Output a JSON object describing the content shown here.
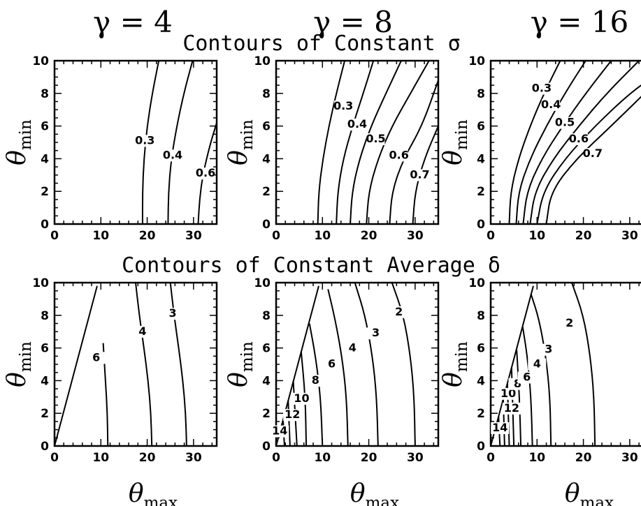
{
  "figure": {
    "gamma_labels": [
      "γ = 4",
      "γ = 8",
      "γ = 16"
    ],
    "row_titles": [
      "Contours of Constant σ",
      "Contours of Constant Average δ"
    ]
  },
  "chart_data": [
    {
      "type": "line",
      "title": "Contours of Constant σ",
      "panel": "γ = 4",
      "xlabel": "",
      "ylabel": "θmin",
      "xlim": [
        0,
        35
      ],
      "ylim": [
        0,
        10
      ],
      "xticks": [
        0,
        10,
        20,
        30
      ],
      "yticks": [
        0,
        2,
        4,
        6,
        8,
        10
      ],
      "series": [
        {
          "name": "0.3",
          "label_at": [
            19.5,
            4.9
          ],
          "x": [
            19.0,
            19.0,
            19.3,
            20.0,
            21.1,
            22.5
          ],
          "y": [
            0,
            2,
            4,
            6,
            8,
            10
          ]
        },
        {
          "name": "0.4",
          "label_at": [
            25.5,
            4.0
          ],
          "x": [
            24.5,
            24.6,
            25.2,
            26.4,
            27.9,
            29.8
          ],
          "y": [
            0,
            2,
            4,
            6,
            8,
            10
          ]
        },
        {
          "name": "0.6",
          "label_at": [
            32.6,
            2.9
          ],
          "x": [
            31.0,
            31.3,
            32.0,
            33.5,
            35.0
          ],
          "y": [
            0,
            1.5,
            3,
            4.8,
            6.2
          ]
        }
      ]
    },
    {
      "type": "line",
      "title": "Contours of Constant σ",
      "panel": "γ = 8",
      "xlabel": "",
      "ylabel": "θmin",
      "xlim": [
        0,
        35
      ],
      "ylim": [
        0,
        10
      ],
      "xticks": [
        0,
        10,
        20,
        30
      ],
      "yticks": [
        0,
        2,
        4,
        6,
        8,
        10
      ],
      "series": [
        {
          "name": "",
          "x": [
            9.0,
            9.2,
            10.1,
            11.4,
            13.0,
            14.8
          ],
          "y": [
            0,
            2,
            4,
            6,
            8,
            10
          ]
        },
        {
          "name": "0.3",
          "label_at": [
            14.5,
            7.0
          ],
          "x": [
            13.0,
            13.3,
            14.5,
            16.5,
            18.8,
            21.0
          ],
          "y": [
            0,
            2,
            4,
            6,
            8,
            10
          ]
        },
        {
          "name": "0.4",
          "label_at": [
            17.5,
            5.9
          ],
          "x": [
            16.0,
            16.4,
            18.0,
            20.5,
            23.7,
            27.0
          ],
          "y": [
            0,
            2,
            4,
            6,
            8,
            10
          ]
        },
        {
          "name": "0.5",
          "label_at": [
            21.5,
            5.0
          ],
          "x": [
            19.5,
            20.0,
            22.0,
            25.0,
            29.0,
            33.0
          ],
          "y": [
            0,
            2,
            4,
            6,
            8,
            10
          ]
        },
        {
          "name": "0.6",
          "label_at": [
            26.5,
            4.0
          ],
          "x": [
            24.5,
            25.0,
            27.5,
            31.5,
            35.0
          ],
          "y": [
            0,
            2,
            4,
            6,
            8.8
          ]
        },
        {
          "name": "0.7",
          "label_at": [
            31.0,
            2.8
          ],
          "x": [
            29.5,
            30.0,
            32.0,
            35.0
          ],
          "y": [
            0,
            2,
            4,
            6
          ]
        }
      ]
    },
    {
      "type": "line",
      "title": "Contours of Constant σ",
      "panel": "γ = 16",
      "xlabel": "",
      "ylabel": "θmin",
      "xlim": [
        0,
        35
      ],
      "ylim": [
        0,
        10
      ],
      "xticks": [
        0,
        10,
        20,
        30
      ],
      "yticks": [
        0,
        2,
        4,
        6,
        8,
        10
      ],
      "series": [
        {
          "name": "",
          "x": [
            4.0,
            4.3,
            6.0,
            8.5,
            11.5,
            15.0
          ],
          "y": [
            0,
            2,
            4,
            6,
            8,
            10
          ]
        },
        {
          "name": "0.3",
          "label_at": [
            11.0,
            8.1
          ],
          "x": [
            5.5,
            6.0,
            8.5,
            12.0,
            16.0,
            20.5
          ],
          "y": [
            0,
            2,
            4,
            6,
            8,
            10
          ]
        },
        {
          "name": "0.4",
          "label_at": [
            13.0,
            7.1
          ],
          "x": [
            7.0,
            7.8,
            11.0,
            15.5,
            20.5,
            26.0
          ],
          "y": [
            0,
            2,
            4,
            6,
            8,
            10
          ]
        },
        {
          "name": "0.5",
          "label_at": [
            16.0,
            6.0
          ],
          "x": [
            8.5,
            9.5,
            13.5,
            19.0,
            25.0,
            32.0
          ],
          "y": [
            0,
            2,
            4,
            6,
            8,
            10
          ]
        },
        {
          "name": "0.6",
          "label_at": [
            19.0,
            5.0
          ],
          "x": [
            10.0,
            11.3,
            16.0,
            22.5,
            30.0,
            35.0
          ],
          "y": [
            0,
            2,
            4,
            6,
            8,
            9.0
          ]
        },
        {
          "name": "0.7",
          "label_at": [
            22.0,
            4.1
          ],
          "x": [
            12.0,
            13.0,
            18.5,
            26.0,
            35.0
          ],
          "y": [
            0,
            2,
            4,
            6,
            8.5
          ]
        }
      ]
    },
    {
      "type": "line",
      "title": "Contours of Constant Average δ",
      "panel": "γ = 4",
      "xlabel": "θmax",
      "ylabel": "θmin",
      "xlim": [
        0,
        35
      ],
      "ylim": [
        0,
        10
      ],
      "xticks": [
        0,
        10,
        20,
        30
      ],
      "yticks": [
        0,
        2,
        4,
        6,
        8,
        10
      ],
      "series": [
        {
          "name": "",
          "x": [
            0,
            9.2
          ],
          "y": [
            0,
            9.8
          ]
        },
        {
          "name": "6",
          "label_at": [
            9.0,
            5.2
          ],
          "x": [
            11.5,
            11.4,
            11.0,
            10.5
          ],
          "y": [
            0,
            2,
            4,
            6.3
          ]
        },
        {
          "name": "4",
          "label_at": [
            19.0,
            6.8
          ],
          "x": [
            21.0,
            20.8,
            20.2,
            19.3,
            18.3,
            17.5
          ],
          "y": [
            0,
            2,
            4,
            6,
            8,
            10
          ]
        },
        {
          "name": "3",
          "label_at": [
            25.5,
            7.9
          ],
          "x": [
            28.5,
            28.3,
            27.7,
            26.8,
            25.8,
            25.0
          ],
          "y": [
            0,
            2,
            4,
            6,
            8,
            10
          ]
        }
      ]
    },
    {
      "type": "line",
      "title": "Contours of Constant Average δ",
      "panel": "γ = 8",
      "xlabel": "θmax",
      "ylabel": "θmin",
      "xlim": [
        0,
        35
      ],
      "ylim": [
        0,
        10
      ],
      "xticks": [
        0,
        10,
        20,
        30
      ],
      "yticks": [
        0,
        2,
        4,
        6,
        8,
        10
      ],
      "series": [
        {
          "name": "",
          "x": [
            0,
            9.2
          ],
          "y": [
            0,
            9.8
          ]
        },
        {
          "name": "14",
          "label_at": [
            0.8,
            0.7
          ],
          "x": [
            1.8,
            1.5
          ],
          "y": [
            0,
            1.6
          ]
        },
        {
          "name": "12",
          "label_at": [
            3.5,
            1.7
          ],
          "x": [
            3.0,
            2.6
          ],
          "y": [
            0,
            2.8
          ]
        },
        {
          "name": "10",
          "label_at": [
            5.5,
            2.7
          ],
          "x": [
            4.5,
            3.7
          ],
          "y": [
            0,
            4.0
          ]
        },
        {
          "name": "8",
          "label_at": [
            8.5,
            3.8
          ],
          "x": [
            6.5,
            6.3,
            5.4
          ],
          "y": [
            0,
            3,
            5.8
          ]
        },
        {
          "name": "6",
          "label_at": [
            12.0,
            4.8
          ],
          "x": [
            10.0,
            9.6,
            8.5,
            7.2
          ],
          "y": [
            0,
            3,
            5.5,
            7.5
          ]
        },
        {
          "name": "4",
          "label_at": [
            16.5,
            5.8
          ],
          "x": [
            15.5,
            15.2,
            14.2,
            12.7,
            11.2
          ],
          "y": [
            0,
            3,
            5.5,
            7.8,
            9.6
          ]
        },
        {
          "name": "3",
          "label_at": [
            21.5,
            6.7
          ],
          "x": [
            22.0,
            21.7,
            20.8,
            19.2,
            17.0
          ],
          "y": [
            0,
            3,
            5.5,
            8,
            10
          ]
        },
        {
          "name": "2",
          "label_at": [
            26.5,
            8.0
          ],
          "x": [
            30.0,
            29.8,
            29.0,
            27.5,
            25.0
          ],
          "y": [
            0,
            3,
            5.5,
            8,
            10
          ]
        }
      ]
    },
    {
      "type": "line",
      "title": "Contours of Constant Average δ",
      "panel": "γ = 16",
      "xlabel": "θmax",
      "ylabel": "θmin",
      "xlim": [
        0,
        35
      ],
      "ylim": [
        0,
        10
      ],
      "xticks": [
        0,
        10,
        20,
        30
      ],
      "yticks": [
        0,
        2,
        4,
        6,
        8,
        10
      ],
      "series": [
        {
          "name": "",
          "x": [
            0,
            9.2
          ],
          "y": [
            0,
            9.8
          ]
        },
        {
          "name": "14",
          "label_at": [
            2.0,
            0.9
          ],
          "x": [
            2.0,
            1.7
          ],
          "y": [
            0,
            1.8
          ]
        },
        {
          "name": "12",
          "label_at": [
            4.5,
            2.1
          ],
          "x": [
            3.0,
            2.7
          ],
          "y": [
            0,
            2.9
          ]
        },
        {
          "name": "10",
          "label_at": [
            3.8,
            3.0
          ],
          "x": [
            4.0,
            3.6
          ],
          "y": [
            0,
            3.8
          ]
        },
        {
          "name": "8",
          "label_at": [
            5.8,
            3.6
          ],
          "x": [
            5.0,
            4.5
          ],
          "y": [
            0,
            4.8
          ]
        },
        {
          "name": "6",
          "label_at": [
            7.8,
            4.0
          ],
          "x": [
            6.5,
            6.2,
            5.6
          ],
          "y": [
            0,
            3,
            5.9
          ]
        },
        {
          "name": "4",
          "label_at": [
            10.0,
            4.8
          ],
          "x": [
            9.0,
            8.7,
            7.9,
            6.9
          ],
          "y": [
            0,
            3,
            5.5,
            7.3
          ]
        },
        {
          "name": "3",
          "label_at": [
            12.5,
            5.7
          ],
          "x": [
            13.0,
            12.8,
            11.9,
            10.4,
            8.7
          ],
          "y": [
            0,
            3,
            5.5,
            7.8,
            9.3
          ]
        },
        {
          "name": "2",
          "label_at": [
            17.0,
            7.3
          ],
          "x": [
            22.5,
            22.3,
            21.5,
            20.0,
            17.5
          ],
          "y": [
            0,
            3,
            5.5,
            8,
            10
          ]
        }
      ]
    }
  ]
}
